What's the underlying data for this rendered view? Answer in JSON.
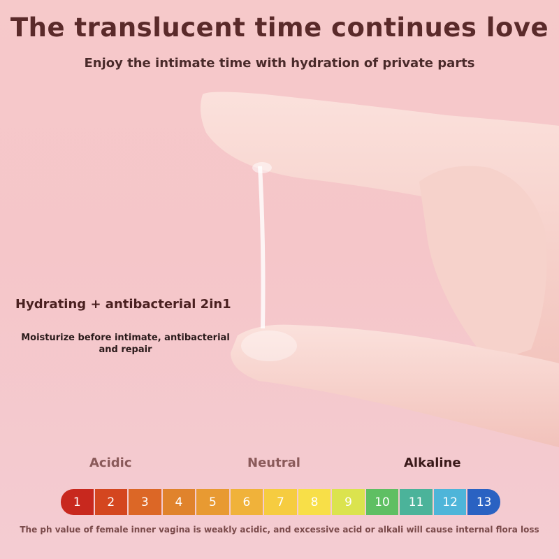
{
  "header": {
    "title": "The translucent time continues love",
    "subtitle": "Enjoy the intimate time with hydration of private parts"
  },
  "feature": {
    "heading": "Hydrating + antibacterial 2in1",
    "description": "Moisturize before intimate, antibacterial and repair"
  },
  "ph_scale": {
    "labels": {
      "acidic": "Acidic",
      "neutral": "Neutral",
      "alkaline": "Alkaline"
    },
    "values": [
      "1",
      "2",
      "3",
      "4",
      "5",
      "6",
      "7",
      "8",
      "9",
      "10",
      "11",
      "12",
      "13"
    ],
    "colors": [
      "#c8281e",
      "#d4461f",
      "#dc6726",
      "#e0832c",
      "#e89a32",
      "#f0b23a",
      "#f6cc40",
      "#f8df48",
      "#dbe34e",
      "#5fbf63",
      "#4bb39a",
      "#4eb5d9",
      "#2a62c2"
    ],
    "note": "The ph value of female inner vagina is weakly acidic, and excessive acid or alkali will cause internal flora loss"
  }
}
